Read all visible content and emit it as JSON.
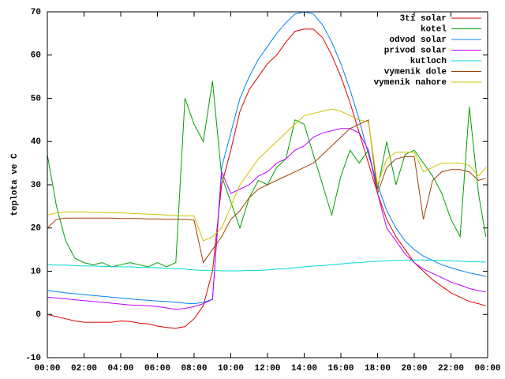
{
  "chart_data": {
    "type": "line",
    "y_label": "teplota ve C",
    "x": [
      0,
      0.5,
      1,
      1.5,
      2,
      2.5,
      3,
      3.5,
      4,
      4.5,
      5,
      5.5,
      6,
      6.5,
      7,
      7.5,
      8,
      8.5,
      9,
      9.5,
      10,
      10.5,
      11,
      11.5,
      12,
      12.5,
      13,
      13.5,
      14,
      14.5,
      15,
      15.5,
      16,
      16.5,
      17,
      17.5,
      18,
      18.5,
      19,
      19.5,
      20,
      20.5,
      21,
      21.5,
      22,
      22.5,
      23,
      23.5,
      23.9
    ],
    "xlim": [
      0,
      24
    ],
    "xticks": [
      {
        "value": 0,
        "label": "00:00"
      },
      {
        "value": 2,
        "label": "02:00"
      },
      {
        "value": 4,
        "label": "04:00"
      },
      {
        "value": 6,
        "label": "06:00"
      },
      {
        "value": 8,
        "label": "08:00"
      },
      {
        "value": 10,
        "label": "10:00"
      },
      {
        "value": 12,
        "label": "12:00"
      },
      {
        "value": 14,
        "label": "14:00"
      },
      {
        "value": 16,
        "label": "16:00"
      },
      {
        "value": 18,
        "label": "18:00"
      },
      {
        "value": 20,
        "label": "20:00"
      },
      {
        "value": 22,
        "label": "22:00"
      },
      {
        "value": 24,
        "label": "00:00"
      }
    ],
    "ylim": [
      -10,
      70
    ],
    "yticks": [
      -10,
      0,
      10,
      20,
      30,
      40,
      50,
      60,
      70
    ],
    "legend": "upper right",
    "series": [
      {
        "name": "3ti solar",
        "color": "#e00000",
        "values": [
          0,
          -0.5,
          -1,
          -1.5,
          -1.8,
          -1.8,
          -1.8,
          -1.8,
          -1.5,
          -1.6,
          -2,
          -2.2,
          -2.7,
          -3,
          -3.2,
          -2.8,
          -1,
          2,
          10,
          30,
          38,
          47,
          52,
          55,
          58,
          60,
          63,
          65.5,
          66,
          66,
          64,
          60,
          55,
          49,
          42,
          35,
          28,
          22,
          18,
          15,
          12,
          10,
          8,
          6.5,
          5,
          4,
          3,
          2.5,
          2
        ]
      },
      {
        "name": "kotel",
        "color": "#00a000",
        "values": [
          37,
          25,
          17,
          13,
          12,
          11.5,
          12,
          11,
          11.5,
          12,
          11.5,
          11,
          12,
          11,
          12,
          50,
          44,
          40,
          54,
          32,
          26,
          20,
          27,
          31,
          30,
          34,
          36,
          45,
          44,
          37,
          30,
          23,
          32,
          38,
          35,
          38,
          29,
          40,
          30,
          37,
          38,
          35,
          32,
          28,
          22,
          18,
          48,
          28,
          18
        ]
      },
      {
        "name": "odvod solar",
        "color": "#0080ff",
        "values": [
          5.5,
          5.3,
          5,
          4.8,
          4.6,
          4.4,
          4.2,
          4,
          3.8,
          3.6,
          3.4,
          3.3,
          3.1,
          3,
          2.8,
          2.6,
          2.5,
          2.8,
          3.5,
          34,
          42,
          50,
          55,
          59,
          62,
          65,
          67.5,
          69.5,
          70,
          69.5,
          67,
          63,
          58,
          52,
          45,
          37,
          30,
          24,
          20,
          17,
          15,
          13.5,
          12.5,
          11.5,
          10.8,
          10.2,
          9.6,
          9.2,
          8.8
        ]
      },
      {
        "name": "privod solar",
        "color": "#c000ff",
        "values": [
          4,
          3.8,
          3.6,
          3.4,
          3.2,
          3,
          2.8,
          2.6,
          2.4,
          2.2,
          2.1,
          2,
          1.8,
          1.5,
          1.2,
          1.4,
          1.8,
          2.5,
          3.5,
          33,
          28,
          29,
          30,
          32,
          33,
          35,
          36,
          38,
          39,
          41,
          42,
          42.5,
          43,
          43,
          42,
          38,
          28,
          20,
          17,
          14,
          12,
          10.5,
          9.5,
          8.5,
          7.5,
          6.8,
          6,
          5.5,
          5.2
        ]
      },
      {
        "name": "kutloch",
        "color": "#00d8d8",
        "values": [
          11.5,
          11.4,
          11.4,
          11.3,
          11.2,
          11.2,
          11.1,
          11.1,
          11,
          11,
          10.9,
          10.9,
          10.8,
          10.7,
          10.6,
          10.5,
          10.3,
          10.2,
          10.2,
          10.1,
          10.1,
          10.1,
          10.2,
          10.2,
          10.3,
          10.5,
          10.6,
          10.8,
          11,
          11.2,
          11.3,
          11.5,
          11.7,
          11.9,
          12,
          12.2,
          12.3,
          12.4,
          12.5,
          12.5,
          12.6,
          12.6,
          12.5,
          12.5,
          12.4,
          12.3,
          12.2,
          12.2,
          12.1
        ]
      },
      {
        "name": "vymenik dole",
        "color": "#a04000",
        "values": [
          20,
          22,
          22.3,
          22.3,
          22.3,
          22.3,
          22.3,
          22.3,
          22.2,
          22.2,
          22.2,
          22.1,
          22.1,
          22,
          22,
          22,
          21.8,
          12,
          15,
          18,
          22,
          24,
          27,
          29,
          30,
          31,
          32,
          33,
          34,
          35,
          37,
          39,
          41,
          43,
          44,
          45,
          28,
          34,
          36,
          36.5,
          36.5,
          22,
          31,
          33,
          33.5,
          33.5,
          33,
          31,
          31.5
        ]
      },
      {
        "name": "vymenik nahore",
        "color": "#d0c000",
        "values": [
          23,
          23.5,
          23.7,
          23.7,
          23.7,
          23.6,
          23.6,
          23.5,
          23.5,
          23.4,
          23.3,
          23.2,
          23.1,
          23,
          22.9,
          22.8,
          22.8,
          17,
          18,
          20,
          25,
          30,
          33,
          36,
          38,
          40,
          42,
          44,
          46,
          46.5,
          47,
          47.5,
          47,
          46,
          45,
          44.5,
          30,
          36,
          37.5,
          37.5,
          37.5,
          33,
          34,
          35,
          35,
          35,
          34.5,
          32,
          34
        ]
      }
    ]
  }
}
